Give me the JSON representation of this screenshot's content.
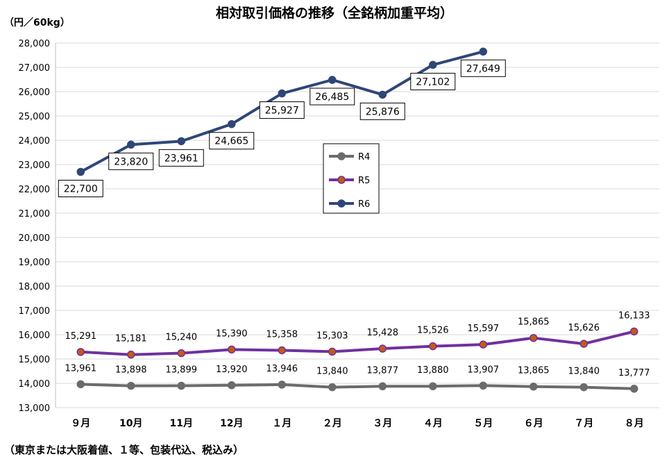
{
  "chart_data": {
    "type": "line",
    "title": "相対取引価格の推移（全銘柄加重平均）",
    "ylabel": "（円／60kg）",
    "footnote": "（東京または大阪着値、１等、包装代込、税込み）",
    "categories": [
      "９月",
      "10月",
      "11月",
      "12月",
      "１月",
      "２月",
      "３月",
      "４月",
      "５月",
      "６月",
      "７月",
      "８月"
    ],
    "ylim": [
      13000,
      28000
    ],
    "ytick_step": 1000,
    "grid": true,
    "legend_position": "center",
    "series": [
      {
        "name": "R4",
        "color": "#6b6b6b",
        "marker_fill": "#6b6b6b",
        "values": [
          13961,
          13898,
          13899,
          13920,
          13946,
          13840,
          13877,
          13880,
          13907,
          13865,
          13840,
          13777
        ],
        "label_style": "above",
        "boxed": false
      },
      {
        "name": "R5",
        "color": "#7030a0",
        "marker_fill": "#c55a11",
        "values": [
          15291,
          15181,
          15240,
          15390,
          15358,
          15303,
          15428,
          15526,
          15597,
          15865,
          15626,
          16133
        ],
        "label_style": "above",
        "boxed": false
      },
      {
        "name": "R6",
        "color": "#2f4678",
        "marker_fill": "#2f4678",
        "values": [
          22700,
          23820,
          23961,
          24665,
          25927,
          26485,
          25876,
          27102,
          27649,
          null,
          null,
          null
        ],
        "label_style": "boxed",
        "boxed": true
      }
    ]
  }
}
